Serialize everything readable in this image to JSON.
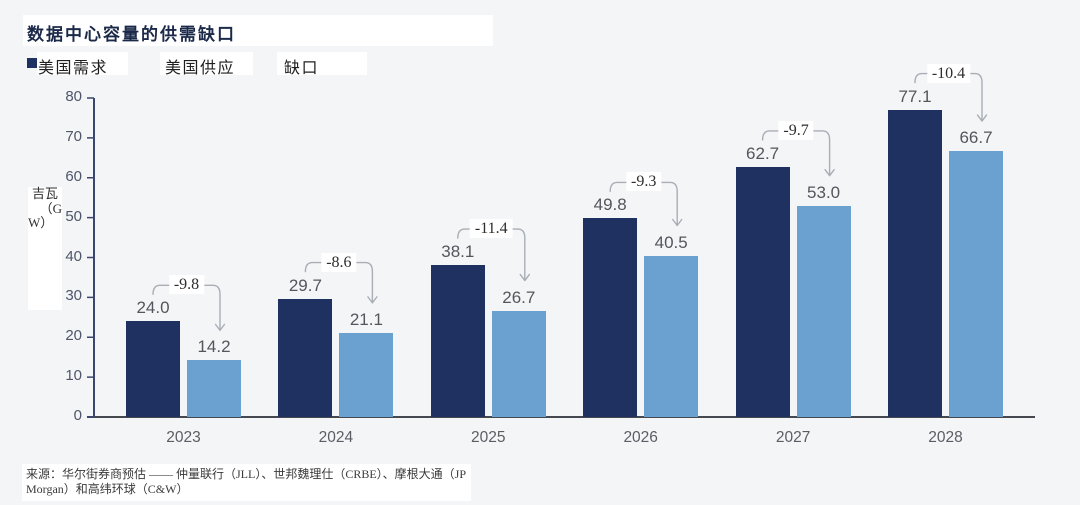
{
  "title": "数据中心容量的供需缺口",
  "legend": {
    "items": [
      {
        "label": "美国需求",
        "marker": "square",
        "color": "#1f3160"
      },
      {
        "label": "美国供应",
        "marker": "none",
        "color": "#6ba1d0"
      },
      {
        "label": "缺口",
        "marker": "none",
        "color": "#a9aeb6"
      }
    ]
  },
  "y_axis": {
    "unit_lines": [
      "吉瓦",
      "（G",
      "W）"
    ]
  },
  "source": "来源：华尔街券商预估 —— 仲量联行（JLL）、世邦魏理仕（CRBE）、摩根大通（JP Morgan）和高纬环球（C&W）",
  "chart_data": {
    "type": "bar",
    "title": "数据中心容量的供需缺口",
    "categories": [
      "2023",
      "2024",
      "2025",
      "2026",
      "2027",
      "2028"
    ],
    "series": [
      {
        "name": "美国需求",
        "color": "#1f3160",
        "values": [
          24.0,
          29.7,
          38.1,
          49.8,
          62.7,
          77.1
        ]
      },
      {
        "name": "美国供应",
        "color": "#6ba1d0",
        "values": [
          14.2,
          21.1,
          26.7,
          40.5,
          53.0,
          66.7
        ]
      }
    ],
    "gap_annotations": {
      "name": "缺口",
      "values": [
        -9.8,
        -8.6,
        -11.4,
        -9.3,
        -9.7,
        -10.4
      ]
    },
    "ylabel": "吉瓦（GW）",
    "ylim": [
      0,
      80
    ],
    "ytick_step": 10,
    "grid": false,
    "legend_position": "top-left",
    "annotation_color": "#a9aeb6"
  }
}
